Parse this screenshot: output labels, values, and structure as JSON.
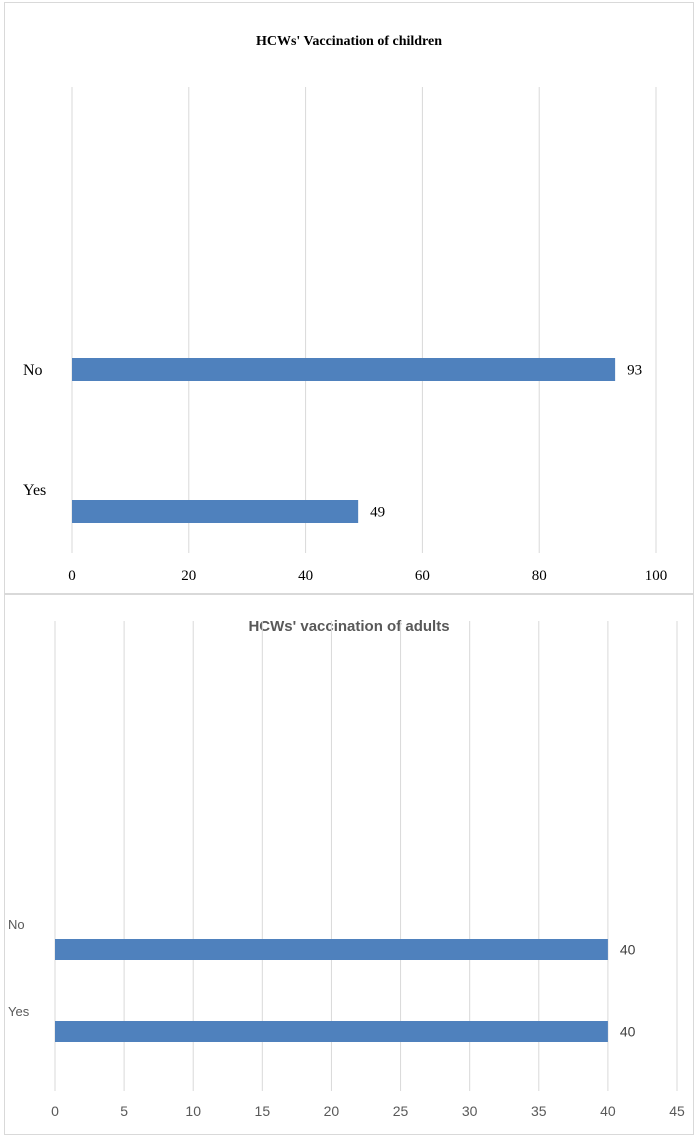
{
  "chart_data": [
    {
      "type": "bar",
      "orientation": "horizontal",
      "title": "HCWs' Vaccination of children",
      "categories": [
        "Yes",
        "No"
      ],
      "values": [
        49,
        93
      ],
      "xlim": [
        0,
        100
      ],
      "xticks": [
        "0",
        "20",
        "40",
        "60",
        "80",
        "100"
      ],
      "grid": true,
      "legend": "none",
      "bar_color": "#4f81bd",
      "data_labels": true
    },
    {
      "type": "bar",
      "orientation": "horizontal",
      "title": "HCWs' vaccination of adults",
      "categories": [
        "Yes",
        "No"
      ],
      "values": [
        40,
        40
      ],
      "xlim": [
        0,
        45
      ],
      "xticks": [
        "0",
        "5",
        "10",
        "15",
        "20",
        "25",
        "30",
        "35",
        "40",
        "45"
      ],
      "grid": true,
      "legend": "none",
      "bar_color": "#4f81bd",
      "data_labels": true
    }
  ]
}
